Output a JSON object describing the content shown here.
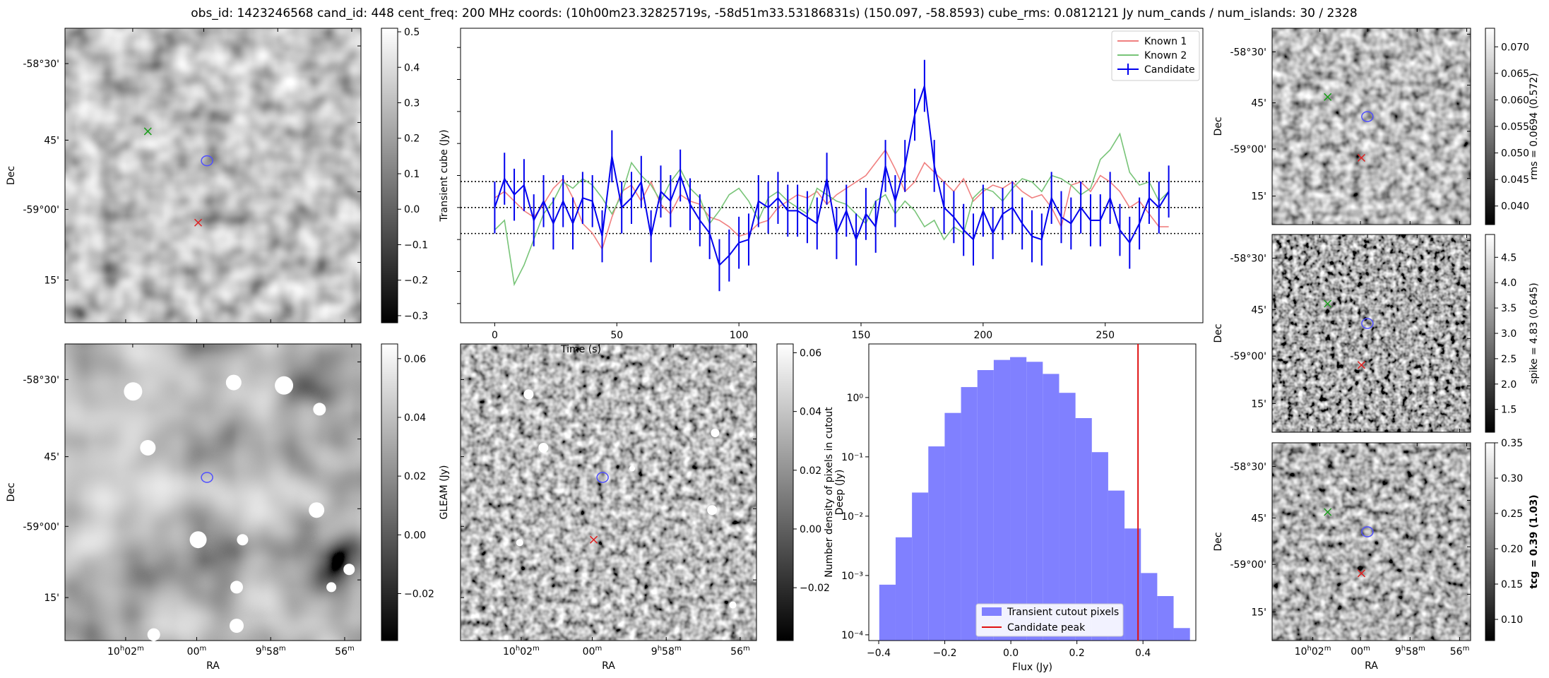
{
  "title": "obs_id: 1423246568 cand_id: 448 cent_freq: 200 MHz coords: (10h00m23.32825719s, -58d51m33.53186831s) (150.097, -58.8593) cube_rms: 0.0812121 Jy num_cands / num_islands: 30 / 2328",
  "image_axes": {
    "dec_ticks": [
      "-58°30'",
      "45'",
      "-59°00'",
      "15'"
    ],
    "ra_ticks": [
      {
        "h": "10",
        "hsup": "h",
        "m": "02",
        "msup": "m"
      },
      {
        "h": "",
        "hsup": "",
        "m": "00",
        "msup": "m"
      },
      {
        "h": "9",
        "hsup": "h",
        "m": "58",
        "msup": "m"
      },
      {
        "h": "",
        "hsup": "",
        "m": "56",
        "msup": "m"
      }
    ],
    "xlabel": "RA",
    "ylabel": "Dec"
  },
  "colorbar_labels": {
    "transient": "Transient cube (Jy)",
    "gleam": "GLEAM (Jy)",
    "deep": "Deep (Jy)",
    "rms": "rms = 0.0694 (0.572)",
    "spike": "spike = 4.83 (0.645)",
    "tcg": "tcg = 0.39 (1.03)"
  },
  "chart_data": [
    {
      "type": "line",
      "title": "",
      "xlabel": "Time (s)",
      "ylabel": "",
      "xlim": [
        -14,
        290
      ],
      "ylim": [
        -0.36,
        0.56
      ],
      "xticks": [
        0,
        50,
        100,
        150,
        200,
        250
      ],
      "hlines_dotted": [
        -0.0812121,
        0,
        0.0812121
      ],
      "legend": [
        "Known 1",
        "Known 2",
        "Candidate"
      ],
      "legend_position": "upper right",
      "series": [
        {
          "name": "Known 1",
          "color": "#f08080",
          "x": [
            0,
            4,
            8,
            12,
            16,
            20,
            24,
            28,
            32,
            36,
            40,
            44,
            48,
            52,
            56,
            60,
            64,
            68,
            72,
            76,
            80,
            84,
            88,
            92,
            96,
            100,
            104,
            108,
            112,
            116,
            120,
            124,
            128,
            132,
            136,
            140,
            144,
            148,
            152,
            156,
            160,
            164,
            168,
            172,
            176,
            180,
            184,
            188,
            192,
            196,
            200,
            204,
            208,
            212,
            216,
            220,
            224,
            228,
            232,
            236,
            240,
            244,
            248,
            252,
            256,
            260,
            264,
            268,
            272,
            276
          ],
          "y": [
            0.03,
            0.05,
            0.02,
            -0.01,
            -0.03,
            0.01,
            0.06,
            0.09,
            0.03,
            -0.05,
            -0.08,
            -0.13,
            -0.03,
            0.05,
            0.07,
            0.02,
            0.08,
            0.01,
            -0.02,
            0.04,
            0.02,
            0.01,
            -0.03,
            -0.04,
            -0.06,
            -0.09,
            -0.08,
            -0.05,
            -0.04,
            0.0,
            0.02,
            0.04,
            0.03,
            0.05,
            0.01,
            0.04,
            0.06,
            0.08,
            0.1,
            0.14,
            0.18,
            0.12,
            0.05,
            0.08,
            0.14,
            0.11,
            0.08,
            0.05,
            0.09,
            0.02,
            0.05,
            0.07,
            0.06,
            0.08,
            0.05,
            0.03,
            0.04,
            0.0,
            -0.06,
            0.07,
            0.08,
            0.05,
            0.1,
            0.08,
            0.05,
            0.0,
            0.02,
            -0.02,
            -0.06,
            -0.06
          ]
        },
        {
          "name": "Known 2",
          "color": "#78c478",
          "x": [
            0,
            4,
            8,
            12,
            16,
            20,
            24,
            28,
            32,
            36,
            40,
            44,
            48,
            52,
            56,
            60,
            64,
            68,
            72,
            76,
            80,
            84,
            88,
            92,
            96,
            100,
            104,
            108,
            112,
            116,
            120,
            124,
            128,
            132,
            136,
            140,
            144,
            148,
            152,
            156,
            160,
            164,
            168,
            172,
            176,
            180,
            184,
            188,
            192,
            196,
            200,
            204,
            208,
            212,
            216,
            220,
            224,
            228,
            232,
            236,
            240,
            244,
            248,
            252,
            256,
            260,
            264,
            268,
            272,
            276
          ],
          "y": [
            -0.07,
            -0.04,
            -0.24,
            -0.18,
            -0.1,
            -0.02,
            0.02,
            0.08,
            0.06,
            0.09,
            0.07,
            0.03,
            -0.02,
            0.04,
            0.14,
            0.1,
            0.07,
            0.02,
            0.08,
            0.12,
            0.06,
            0.03,
            -0.05,
            -0.01,
            0.04,
            0.06,
            0.02,
            -0.04,
            0.03,
            0.05,
            0.02,
            0.0,
            -0.02,
            0.06,
            0.04,
            0.02,
            0.01,
            -0.02,
            -0.05,
            0.02,
            0.04,
            -0.02,
            0.02,
            -0.01,
            -0.06,
            -0.04,
            -0.1,
            -0.06,
            -0.08,
            0.03,
            0.06,
            0.05,
            0.02,
            0.06,
            0.09,
            0.08,
            0.05,
            0.1,
            0.09,
            0.07,
            0.04,
            0.06,
            0.15,
            0.18,
            0.23,
            0.11,
            0.07,
            0.08,
            0.02,
            0.05
          ]
        },
        {
          "name": "Candidate",
          "color": "#0000ee",
          "yerr": 0.0812121,
          "x": [
            0,
            4,
            8,
            12,
            16,
            20,
            24,
            28,
            32,
            36,
            40,
            44,
            48,
            52,
            56,
            60,
            64,
            68,
            72,
            76,
            80,
            84,
            88,
            92,
            96,
            100,
            104,
            108,
            112,
            116,
            120,
            124,
            128,
            132,
            136,
            140,
            144,
            148,
            152,
            156,
            160,
            164,
            168,
            172,
            176,
            180,
            184,
            188,
            192,
            196,
            200,
            204,
            208,
            212,
            216,
            220,
            224,
            228,
            232,
            236,
            240,
            244,
            248,
            252,
            256,
            260,
            264,
            268,
            272,
            276
          ],
          "y": [
            0.0,
            0.09,
            0.04,
            0.07,
            -0.04,
            0.02,
            -0.05,
            0.02,
            -0.05,
            0.03,
            0.02,
            -0.09,
            0.16,
            0.0,
            0.03,
            0.08,
            -0.09,
            0.05,
            0.02,
            0.1,
            0.01,
            -0.04,
            -0.08,
            -0.18,
            -0.15,
            -0.11,
            -0.1,
            0.02,
            0.0,
            0.03,
            -0.01,
            -0.01,
            -0.03,
            -0.05,
            0.09,
            -0.08,
            -0.01,
            -0.1,
            -0.02,
            -0.06,
            0.13,
            0.02,
            0.13,
            0.29,
            0.38,
            0.13,
            0.0,
            -0.03,
            -0.07,
            -0.1,
            -0.01,
            -0.08,
            -0.02,
            0.0,
            -0.05,
            -0.09,
            -0.1,
            0.03,
            -0.03,
            -0.05,
            0.0,
            -0.04,
            -0.04,
            0.03,
            -0.07,
            -0.11,
            -0.05,
            0.03,
            0.0,
            0.05
          ]
        }
      ]
    },
    {
      "type": "bar",
      "title": "",
      "xlabel": "Flux (Jy)",
      "ylabel": "Number density of pixels in cutout",
      "yscale": "log",
      "xlim": [
        -0.43,
        0.56
      ],
      "ylim": [
        8e-05,
        8
      ],
      "xticks": [
        -0.4,
        -0.2,
        0.0,
        0.2,
        0.4
      ],
      "yticks": [
        "10⁻⁴",
        "10⁻³",
        "10⁻²",
        "10⁻¹",
        "10⁰"
      ],
      "bin_edges": [
        -0.3983,
        -0.3488,
        -0.2993,
        -0.2498,
        -0.2003,
        -0.1508,
        -0.1013,
        -0.0518,
        -0.0023,
        0.0472,
        0.0967,
        0.1462,
        0.1957,
        0.2452,
        0.2947,
        0.3442,
        0.3937,
        0.4432,
        0.4927,
        0.5422
      ],
      "values": [
        0.0007,
        0.0044,
        0.025,
        0.15,
        0.55,
        1.5,
        2.9,
        4.3,
        4.8,
        4.0,
        2.5,
        1.2,
        0.45,
        0.12,
        0.027,
        0.0062,
        0.0011,
        0.00045,
        0.00013
      ],
      "candidate_peak": 0.385,
      "legend": [
        "Transient cutout pixels",
        "Candidate peak"
      ],
      "legend_position": "lower center"
    },
    {
      "type": "heatmap",
      "name": "colorbar-transient",
      "range": [
        -0.32,
        0.51
      ],
      "ticks": [
        -0.3,
        -0.2,
        -0.1,
        0.0,
        0.1,
        0.2,
        0.3,
        0.4,
        0.5
      ],
      "tick_labels": [
        "−0.3",
        "−0.2",
        "−0.1",
        "0.0",
        "0.1",
        "0.2",
        "0.3",
        "0.4",
        "0.5"
      ]
    },
    {
      "type": "heatmap",
      "name": "colorbar-gleam",
      "range": [
        -0.036,
        0.065
      ],
      "ticks": [
        -0.02,
        0.0,
        0.02,
        0.04,
        0.06
      ],
      "tick_labels": [
        "−0.02",
        "0.00",
        "0.02",
        "0.04",
        "0.06"
      ]
    },
    {
      "type": "heatmap",
      "name": "colorbar-deep",
      "range": [
        -0.038,
        0.063
      ],
      "ticks": [
        -0.02,
        0.0,
        0.02,
        0.04,
        0.06
      ],
      "tick_labels": [
        "−0.02",
        "0.00",
        "0.02",
        "0.04",
        "0.06"
      ]
    },
    {
      "type": "heatmap",
      "name": "colorbar-rms",
      "range": [
        0.0365,
        0.0735
      ],
      "ticks": [
        0.04,
        0.045,
        0.05,
        0.055,
        0.06,
        0.065,
        0.07
      ],
      "tick_labels": [
        "0.040",
        "0.045",
        "0.050",
        "0.055",
        "0.060",
        "0.065",
        "0.070"
      ]
    },
    {
      "type": "heatmap",
      "name": "colorbar-spike",
      "range": [
        1.05,
        4.95
      ],
      "ticks": [
        1.5,
        2.0,
        2.5,
        3.0,
        3.5,
        4.0,
        4.5
      ],
      "tick_labels": [
        "1.5",
        "2.0",
        "2.5",
        "3.0",
        "3.5",
        "4.0",
        "4.5"
      ]
    },
    {
      "type": "heatmap",
      "name": "colorbar-tcg",
      "range": [
        0.07,
        0.35
      ],
      "ticks": [
        0.1,
        0.15,
        0.2,
        0.25,
        0.3,
        0.35
      ],
      "tick_labels": [
        "0.10",
        "0.15",
        "0.20",
        "0.25",
        "0.30",
        "0.35"
      ]
    }
  ]
}
